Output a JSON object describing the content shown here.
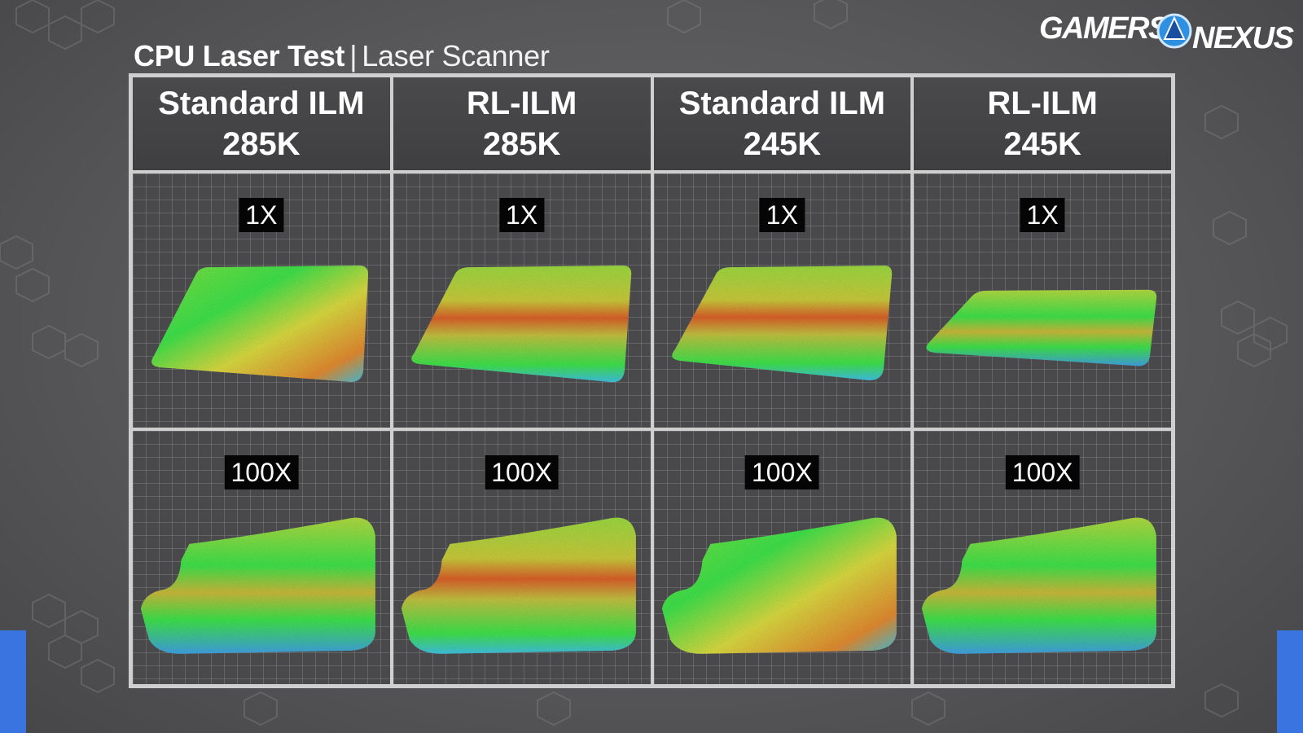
{
  "title": {
    "bold": "CPU Laser Test",
    "separator": "|",
    "light": "Laser Scanner"
  },
  "logo": {
    "left": "GAMERS",
    "right": "NEXUS"
  },
  "columns": [
    {
      "name": "Standard ILM",
      "temp": "285K"
    },
    {
      "name": "RL-ILM",
      "temp": "285K"
    },
    {
      "name": "Standard ILM",
      "temp": "245K"
    },
    {
      "name": "RL-ILM",
      "temp": "245K"
    }
  ],
  "rows": [
    {
      "label": "1X"
    },
    {
      "label": "100X"
    }
  ],
  "colors": {
    "accent_blue": "#3a74e0",
    "grid_line": "#cfcfcf",
    "scan_low": "#3fbfe0",
    "scan_mid": "#3ee04a",
    "scan_high": "#e0602a"
  }
}
